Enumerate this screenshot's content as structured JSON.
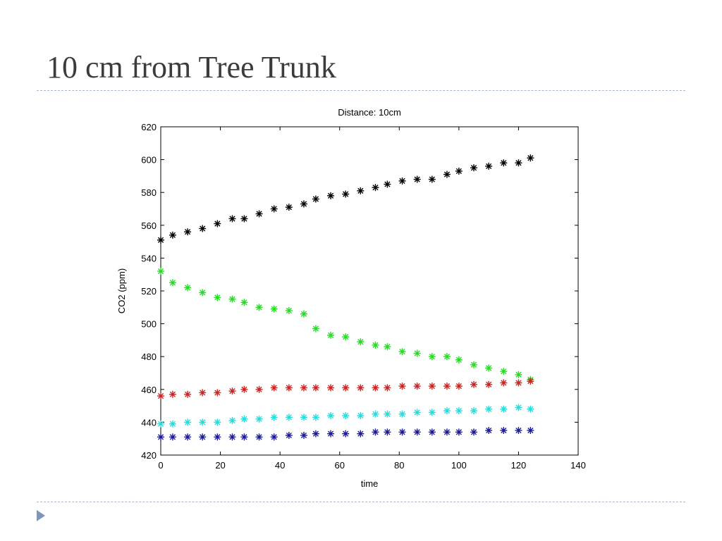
{
  "slide": {
    "title": "10 cm from Tree Trunk",
    "bullet_icon": "triangle-bullet-icon"
  },
  "colors": {
    "title": "#3c3c3c",
    "rule": "#a9b6c8",
    "bullet": "#7f96b8"
  },
  "chart_data": {
    "type": "scatter",
    "marker": "*",
    "title": "Distance: 10cm",
    "xlabel": "time",
    "ylabel": "CO2 (ppm)",
    "xlim": [
      0,
      140
    ],
    "ylim": [
      420,
      620
    ],
    "xticks": [
      0,
      20,
      40,
      60,
      80,
      100,
      120,
      140
    ],
    "yticks": [
      420,
      440,
      460,
      480,
      500,
      520,
      540,
      560,
      580,
      600,
      620
    ],
    "grid": false,
    "legend": "none",
    "x": [
      0,
      4,
      9,
      14,
      19,
      24,
      28,
      33,
      38,
      43,
      48,
      52,
      57,
      62,
      67,
      72,
      76,
      81,
      86,
      91,
      96,
      100,
      105,
      110,
      115,
      120,
      124
    ],
    "series": [
      {
        "color": "#000000",
        "values": [
          551,
          554,
          556,
          558,
          561,
          564,
          564,
          567,
          570,
          571,
          573,
          576,
          578,
          579,
          581,
          583,
          585,
          587,
          588,
          588,
          591,
          593,
          595,
          596,
          598,
          598,
          601
        ]
      },
      {
        "color": "#22dd22",
        "values": [
          532,
          525,
          522,
          519,
          516,
          515,
          513,
          510,
          509,
          508,
          506,
          497,
          493,
          492,
          489,
          487,
          486,
          483,
          482,
          480,
          480,
          478,
          475,
          473,
          471,
          469,
          466
        ]
      },
      {
        "color": "#cc2222",
        "values": [
          456,
          457,
          457,
          458,
          458,
          459,
          460,
          460,
          461,
          461,
          461,
          461,
          461,
          461,
          461,
          461,
          461,
          462,
          462,
          462,
          462,
          462,
          463,
          463,
          464,
          464,
          465
        ]
      },
      {
        "color": "#22dddd",
        "values": [
          439,
          439,
          440,
          440,
          440,
          441,
          442,
          442,
          443,
          443,
          443,
          443,
          444,
          444,
          444,
          445,
          445,
          445,
          446,
          446,
          447,
          447,
          447,
          448,
          448,
          449,
          448
        ]
      },
      {
        "color": "#1a1a99",
        "values": [
          431,
          431,
          431,
          431,
          431,
          431,
          431,
          431,
          431,
          432,
          432,
          433,
          433,
          433,
          433,
          434,
          434,
          434,
          434,
          434,
          434,
          434,
          434,
          435,
          435,
          435,
          435
        ]
      }
    ]
  }
}
